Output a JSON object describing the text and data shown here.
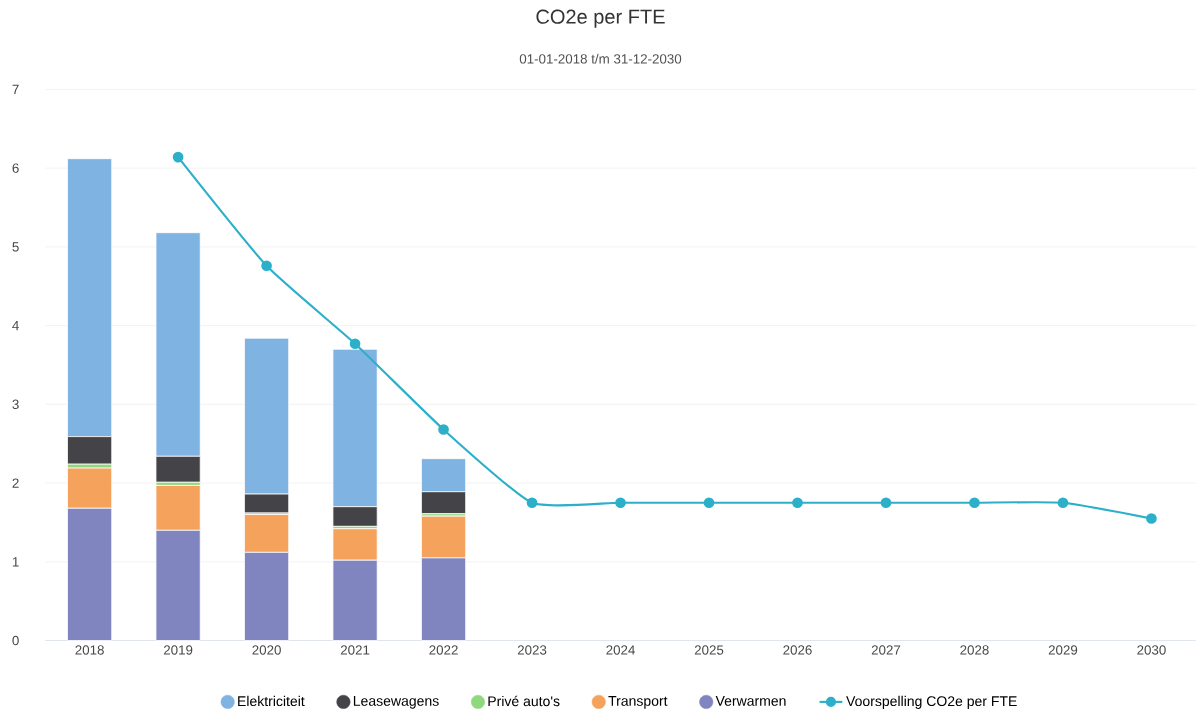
{
  "chart_data": {
    "type": "bar",
    "title": "CO2e per FTE",
    "subtitle": "01-01-2018 t/m 31-12-2030",
    "categories": [
      "2018",
      "2019",
      "2020",
      "2021",
      "2022",
      "2023",
      "2024",
      "2025",
      "2026",
      "2027",
      "2028",
      "2029",
      "2030"
    ],
    "stacked": true,
    "ylim": [
      0,
      7
    ],
    "yticks": [
      0,
      1,
      2,
      3,
      4,
      5,
      6,
      7
    ],
    "grid": "y",
    "legend": "bottom",
    "series": [
      {
        "name": "Verwarmen",
        "color": "#8085c0",
        "values": [
          1.68,
          1.4,
          1.12,
          1.02,
          1.05,
          null,
          null,
          null,
          null,
          null,
          null,
          null,
          null
        ]
      },
      {
        "name": "Transport",
        "color": "#f4a25c",
        "values": [
          0.51,
          0.57,
          0.48,
          0.4,
          0.53,
          null,
          null,
          null,
          null,
          null,
          null,
          null,
          null
        ]
      },
      {
        "name": "Privé auto's",
        "color": "#90d87d",
        "values": [
          0.05,
          0.04,
          0.02,
          0.03,
          0.03,
          null,
          null,
          null,
          null,
          null,
          null,
          null,
          null
        ]
      },
      {
        "name": "Leasewagens",
        "color": "#434348",
        "values": [
          0.35,
          0.33,
          0.24,
          0.25,
          0.28,
          null,
          null,
          null,
          null,
          null,
          null,
          null,
          null
        ]
      },
      {
        "name": "Elektriciteit",
        "color": "#7fb3e2",
        "values": [
          3.53,
          2.84,
          1.98,
          2.0,
          0.42,
          null,
          null,
          null,
          null,
          null,
          null,
          null,
          null
        ]
      },
      {
        "name": "Voorspelling CO2e per FTE",
        "type": "line",
        "marker": "circle",
        "color": "#2cb0c9",
        "values": [
          null,
          6.14,
          4.76,
          3.77,
          2.68,
          1.75,
          1.75,
          1.75,
          1.75,
          1.75,
          1.75,
          1.75,
          1.55
        ]
      }
    ]
  }
}
